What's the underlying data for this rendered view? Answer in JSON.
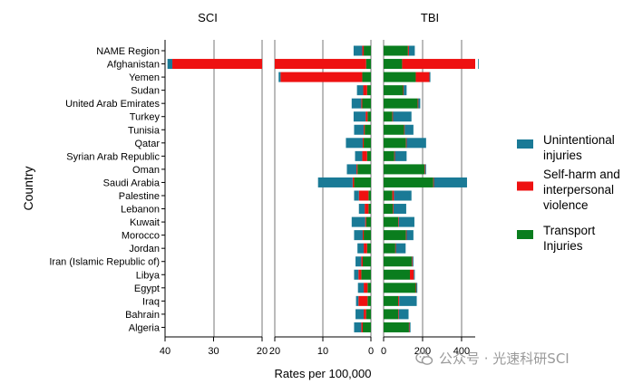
{
  "chart_data": {
    "type": "bar",
    "orientation": "horizontal",
    "stacked": true,
    "panel_titles": {
      "sci": "SCI",
      "tbi": "TBI"
    },
    "xlabel": "Rates per 100,000",
    "ylabel": "Country",
    "legend": {
      "position": "right",
      "entries": [
        {
          "key": "unintentional",
          "label_lines": [
            "Unintentional",
            "injuries"
          ],
          "color": "#1a7a96"
        },
        {
          "key": "selfharm",
          "label_lines": [
            "Self-harm and",
            "interpersonal",
            "violence"
          ],
          "color": "#ee1111"
        },
        {
          "key": "transport",
          "label_lines": [
            "Transport",
            "Injuries"
          ],
          "color": "#0a7d1e"
        }
      ]
    },
    "categories": [
      "NAME Region",
      "Afghanistan",
      "Yemen",
      "Sudan",
      "United Arab Emirates",
      "Turkey",
      "Tunisia",
      "Qatar",
      "Syrian Arab Republic",
      "Oman",
      "Saudi Arabia",
      "Palestine",
      "Lebanon",
      "Kuwait",
      "Morocco",
      "Jordan",
      "Iran (Islamic Republic of)",
      "Libya",
      "Egypt",
      "Iraq",
      "Bahrain",
      "Algeria"
    ],
    "sci": {
      "direction": "reversed",
      "segments": [
        {
          "min": 0,
          "max": 20,
          "ticks": [
            20,
            10,
            0
          ]
        },
        {
          "min": 20,
          "max": 40,
          "ticks": [
            40,
            30,
            20
          ]
        }
      ],
      "transport": [
        1.5,
        1.0,
        1.8,
        0.8,
        1.8,
        0.7,
        1.3,
        1.5,
        0.8,
        2.8,
        3.5,
        0.5,
        0.5,
        1.0,
        1.5,
        0.8,
        1.7,
        2.0,
        0.7,
        0.7,
        1.0,
        1.7
      ],
      "selfharm": [
        0.3,
        37.5,
        17.0,
        0.8,
        0.2,
        0.4,
        0.2,
        0.2,
        1.0,
        0.2,
        0.3,
        2.0,
        0.8,
        0.2,
        0.2,
        0.7,
        0.3,
        0.6,
        0.8,
        1.9,
        0.5,
        0.3
      ],
      "unintentional": [
        1.8,
        1.0,
        0.4,
        1.3,
        2.0,
        2.5,
        2.0,
        3.5,
        1.5,
        2.0,
        7.2,
        1.0,
        1.2,
        2.8,
        1.8,
        1.3,
        1.2,
        0.9,
        1.2,
        0.5,
        1.7,
        1.5
      ]
    },
    "tbi": {
      "xlim": [
        0,
        470
      ],
      "ticks": [
        0,
        200,
        400
      ],
      "transport": [
        125,
        95,
        165,
        100,
        175,
        45,
        105,
        115,
        55,
        210,
        255,
        45,
        48,
        75,
        115,
        60,
        145,
        135,
        165,
        75,
        75,
        130
      ],
      "selfharm": [
        5,
        390,
        70,
        3,
        3,
        3,
        3,
        3,
        3,
        3,
        3,
        8,
        3,
        3,
        3,
        3,
        3,
        20,
        3,
        5,
        3,
        3
      ],
      "unintentional": [
        30,
        10,
        5,
        15,
        10,
        95,
        45,
        100,
        60,
        5,
        170,
        90,
        65,
        80,
        35,
        50,
        5,
        5,
        5,
        90,
        50,
        5
      ]
    }
  },
  "watermark": {
    "text": "公众号 · 光速科研SCI"
  }
}
